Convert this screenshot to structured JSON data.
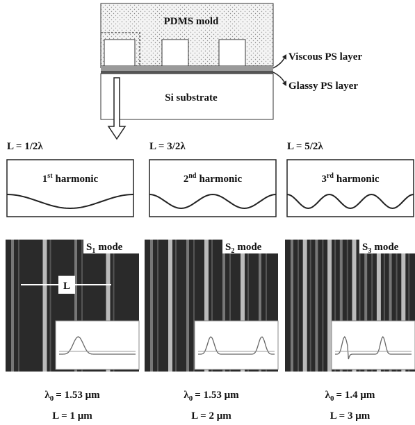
{
  "schematic": {
    "mold": "PDMS mold",
    "viscous": "Viscous PS layer",
    "glassy": "Glassy PS layer",
    "substrate": "Si substrate"
  },
  "harmonics": [
    {
      "length": "L = 1/2λ",
      "ordinal": "1",
      "suffix": "st",
      "label": "harmonic"
    },
    {
      "length": "L = 3/2λ",
      "ordinal": "2",
      "suffix": "nd",
      "label": "harmonic"
    },
    {
      "length": "L = 5/2λ",
      "ordinal": "3",
      "suffix": "rd",
      "label": "harmonic"
    }
  ],
  "images": [
    {
      "mode": "S",
      "sub": "1",
      "mode_label": "mode",
      "marker": "L",
      "symbol": "λ",
      "symbol_sub": "0",
      "period": "= 1.53 μm",
      "length": "L = 1 μm"
    },
    {
      "mode": "S",
      "sub": "2",
      "mode_label": "mode",
      "symbol": "λ",
      "symbol_sub": "0",
      "period": "= 1.53 μm",
      "length": "L = 2 μm"
    },
    {
      "mode": "S",
      "sub": "3",
      "mode_label": "mode",
      "symbol": "λ",
      "symbol_sub": "0",
      "period": "= 1.4 μm",
      "length": "L = 3 μm"
    }
  ]
}
